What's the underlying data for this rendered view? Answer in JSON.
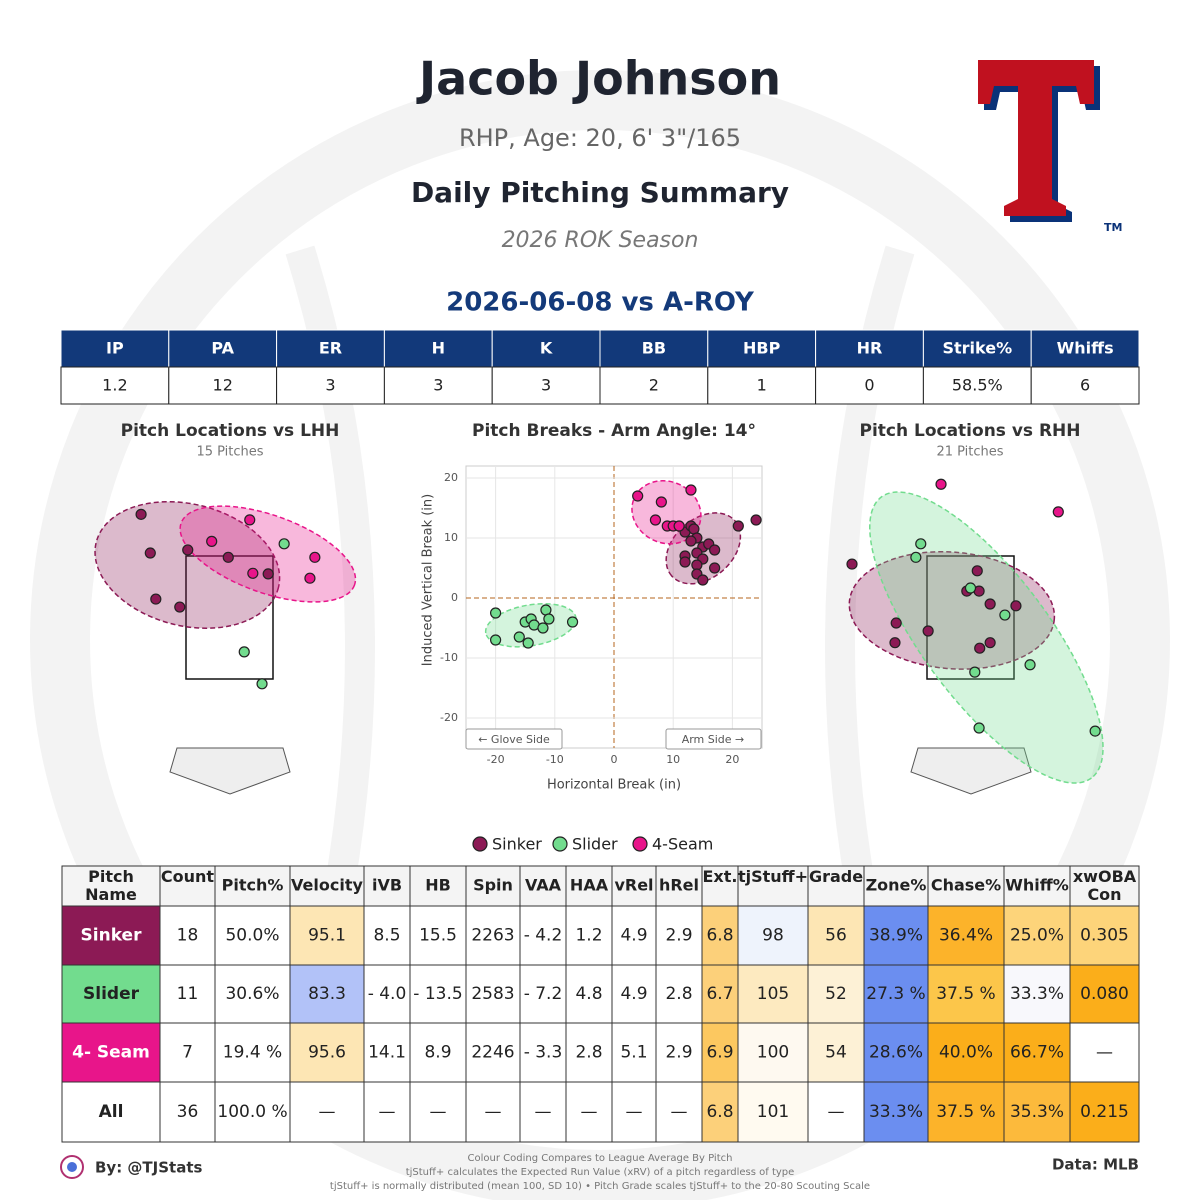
{
  "header": {
    "title": "Jacob Johnson",
    "subtitle": "RHP, Age: 20, 6' 3\"/165",
    "summary": "Daily Pitching Summary",
    "season": "2026 ROK Season",
    "game": "2026-06-08 vs A-ROY",
    "logo_mark": "TM"
  },
  "stats_table": {
    "headers": [
      "IP",
      "PA",
      "ER",
      "H",
      "K",
      "BB",
      "HBP",
      "HR",
      "Strike%",
      "Whiffs"
    ],
    "values": [
      "1.2",
      "12",
      "3",
      "3",
      "3",
      "2",
      "1",
      "0",
      "58.5%",
      "6"
    ]
  },
  "chart_data": [
    {
      "type": "scatter",
      "title": "Pitch Locations vs LHH",
      "subtitle": "15 Pitches",
      "xlim": [
        -2.5,
        2.5
      ],
      "ylim": [
        0,
        5
      ],
      "series": [
        {
          "name": "Sinker",
          "color": "#8c1a55",
          "x": [
            -1.44,
            -1.29,
            -0.68,
            -1.2,
            -0.81,
            -0.02,
            0.63
          ],
          "values": [
            4.18,
            3.55,
            3.6,
            2.8,
            2.67,
            3.48,
            3.21
          ]
        },
        {
          "name": "Slider",
          "color": "#72dc8e",
          "x": [
            0.89,
            0.24,
            0.53
          ],
          "values": [
            3.7,
            1.94,
            1.42
          ]
        },
        {
          "name": "4-Seam",
          "color": "#e8158a",
          "x": [
            0.33,
            -0.29,
            0.38,
            1.39,
            1.31
          ],
          "values": [
            4.09,
            3.74,
            3.22,
            3.48,
            3.14
          ]
        }
      ]
    },
    {
      "type": "scatter",
      "title": "Pitch Breaks - Arm Angle: 14°",
      "xlabel": "Horizontal Break (in)",
      "ylabel": "Induced Vertical Break (in)",
      "left_note": "← Glove Side",
      "right_note": "Arm Side →",
      "xlim": [
        -25,
        25
      ],
      "ylim": [
        -25,
        22
      ],
      "xticks": [
        -20,
        -10,
        0,
        10,
        20
      ],
      "yticks": [
        20,
        10,
        0,
        -10,
        -20
      ],
      "grid": true,
      "series": [
        {
          "name": "Sinker",
          "color": "#8c1a55",
          "x": [
            12,
            13,
            13.5,
            14,
            13,
            15,
            16,
            17,
            12,
            14,
            15,
            12,
            14,
            14,
            15,
            17,
            21,
            24
          ],
          "values": [
            11,
            12,
            11.5,
            10,
            9.5,
            8.5,
            9,
            8,
            7,
            7.5,
            6.5,
            6,
            5.5,
            4,
            3,
            5,
            12,
            13
          ]
        },
        {
          "name": "Slider",
          "color": "#72dc8e",
          "x": [
            -20,
            -20,
            -16,
            -14.5,
            -15,
            -14,
            -13.5,
            -11.5,
            -11,
            -7,
            -12
          ],
          "values": [
            -2.5,
            -7,
            -6.5,
            -7.5,
            -4,
            -3.5,
            -4.5,
            -2,
            -3.5,
            -4,
            -5
          ]
        },
        {
          "name": "4-Seam",
          "color": "#e8158a",
          "x": [
            4,
            7,
            8,
            9,
            10,
            13,
            11
          ],
          "values": [
            17,
            13,
            16,
            12,
            12,
            18,
            12
          ]
        }
      ]
    },
    {
      "type": "scatter",
      "title": "Pitch Locations vs RHH",
      "subtitle": "21 Pitches",
      "xlim": [
        -2.5,
        2.5
      ],
      "ylim": [
        0,
        5
      ],
      "series": [
        {
          "name": "Sinker",
          "color": "#8c1a55",
          "x": [
            -1.93,
            -1.21,
            -1.23,
            -0.69,
            0.11,
            -0.06,
            0.14,
            0.32,
            0.74,
            0.32,
            0.15
          ],
          "values": [
            3.37,
            2.41,
            2.09,
            2.28,
            3.26,
            2.93,
            2.93,
            2.72,
            2.69,
            2.09,
            2.0
          ]
        },
        {
          "name": "Slider",
          "color": "#72dc8e",
          "x": [
            -0.81,
            -0.89,
            0,
            0.56,
            0.07,
            0.97,
            0.14,
            2.03
          ],
          "values": [
            3.7,
            3.48,
            2.98,
            2.54,
            1.61,
            1.73,
            0.7,
            0.65
          ]
        },
        {
          "name": "4-Seam",
          "color": "#e8158a",
          "x": [
            -0.48,
            1.43
          ],
          "values": [
            4.67,
            4.22
          ]
        }
      ]
    }
  ],
  "pitch_table": {
    "headers": [
      "Pitch Name",
      "Count",
      "Pitch%",
      "Velocity",
      "iVB",
      "HB",
      "Spin",
      "VAA",
      "HAA",
      "vRel",
      "hRel",
      "Ext.",
      "tjStuff+",
      "Grade",
      "Zone%",
      "Chase%",
      "Whiff%",
      "xwOBA Con"
    ],
    "rows": [
      {
        "cells": [
          "Sinker",
          "18",
          "50.0%",
          "95.1",
          "8.5",
          "15.5",
          "2263",
          "- 4.2",
          "1.2",
          "4.9",
          "2.9",
          "6.8",
          "98",
          "56",
          "38.9%",
          "36.4%",
          "25.0%",
          "0.305"
        ],
        "colors": [
          "#8c1a55",
          "#ffffff",
          "#ffffff",
          "#fde6b4",
          "#ffffff",
          "#ffffff",
          "#ffffff",
          "#ffffff",
          "#ffffff",
          "#ffffff",
          "#ffffff",
          "#fcd07a",
          "#eef3fc",
          "#fde6b4",
          "#6b8ef0",
          "#fcb32a",
          "#fdd47a",
          "#fdd47a"
        ]
      },
      {
        "cells": [
          "Slider",
          "11",
          "30.6%",
          "83.3",
          "- 4.0",
          "- 13.5",
          "2583",
          "- 7.2",
          "4.8",
          "4.9",
          "2.8",
          "6.7",
          "105",
          "52",
          "27.3 %",
          "37.5 %",
          "33.3%",
          "0.080"
        ],
        "colors": [
          "#72dc8e",
          "#ffffff",
          "#ffffff",
          "#b2c2f8",
          "#ffffff",
          "#ffffff",
          "#ffffff",
          "#ffffff",
          "#ffffff",
          "#ffffff",
          "#ffffff",
          "#fcd07a",
          "#fdeac0",
          "#fdf1d6",
          "#6b8ef0",
          "#fcc64a",
          "#f8f8fc",
          "#fbae1a"
        ]
      },
      {
        "cells": [
          "4- Seam",
          "7",
          "19.4 %",
          "95.6",
          "14.1",
          "8.9",
          "2246",
          "- 3.3",
          "2.8",
          "5.1",
          "2.9",
          "6.9",
          "100",
          "54",
          "28.6%",
          "40.0%",
          "66.7%",
          "—"
        ],
        "colors": [
          "#e8158a",
          "#ffffff",
          "#ffffff",
          "#fde6b4",
          "#ffffff",
          "#ffffff",
          "#ffffff",
          "#ffffff",
          "#ffffff",
          "#ffffff",
          "#ffffff",
          "#fcc860",
          "#fef9f0",
          "#fdf1d6",
          "#6b8ef0",
          "#fbae1a",
          "#fbae1a",
          "#ffffff"
        ]
      },
      {
        "cells": [
          "All",
          "36",
          "100.0 %",
          "—",
          "—",
          "—",
          "—",
          "—",
          "—",
          "—",
          "—",
          "6.8",
          "101",
          "—",
          "33.3%",
          "37.5 %",
          "35.3%",
          "0.215"
        ],
        "colors": [
          "#ffffff",
          "#ffffff",
          "#ffffff",
          "#ffffff",
          "#ffffff",
          "#ffffff",
          "#ffffff",
          "#ffffff",
          "#ffffff",
          "#ffffff",
          "#ffffff",
          "#fcd07a",
          "#fffaf0",
          "#ffffff",
          "#6b8ef0",
          "#fcb32a",
          "#fcba3c",
          "#fbae1a"
        ]
      }
    ]
  },
  "footer": {
    "author": "By: @TJStats",
    "notes": [
      "Colour Coding Compares to League Average By Pitch",
      "tjStuff+ calculates the Expected Run Value (xRV) of a pitch regardless of type",
      "tjStuff+ is normally distributed (mean 100, SD 10) • Pitch Grade scales tjStuff+ to the 20-80 Scouting Scale"
    ],
    "source": "Data: MLB"
  }
}
